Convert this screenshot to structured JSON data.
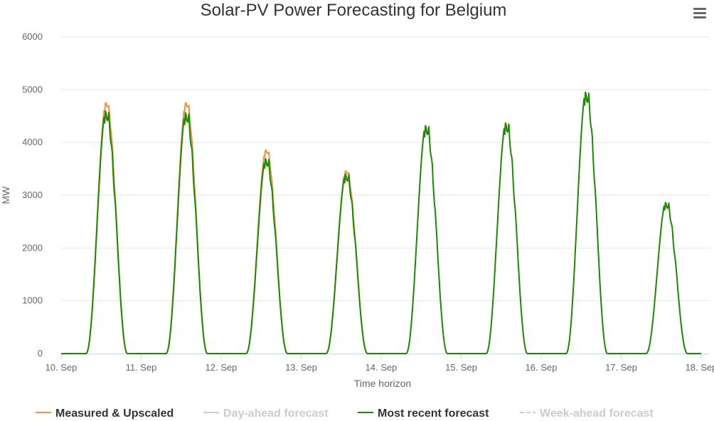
{
  "chart_data": {
    "type": "line",
    "title": "Solar-PV Power Forecasting for Belgium",
    "xlabel": "Time horizon",
    "ylabel": "MW",
    "ylim": [
      0,
      6000
    ],
    "yticks": [
      "0",
      "1000",
      "2000",
      "3000",
      "4000",
      "5000",
      "6000"
    ],
    "xlim": [
      "10. Sep",
      "18. Sep"
    ],
    "xticks": [
      "10. Sep",
      "11. Sep",
      "12. Sep",
      "13. Sep",
      "14. Sep",
      "15. Sep",
      "16. Sep",
      "17. Sep",
      "18. Sep"
    ],
    "grid": "horizontal",
    "legend_position": "bottom",
    "series": [
      {
        "name": "Measured & Upscaled",
        "color": "#f28f43",
        "visible": true,
        "days": [
          {
            "date": "10. Sep",
            "peak": 4830
          },
          {
            "date": "11. Sep",
            "peak": 4830
          },
          {
            "date": "12. Sep",
            "peak": 3920
          },
          {
            "date": "13. Sep",
            "peak": 3520
          }
        ]
      },
      {
        "name": "Day-ahead forecast",
        "color": "#cccccc",
        "visible": false,
        "days": []
      },
      {
        "name": "Most recent forecast",
        "color": "#1a8a00",
        "visible": true,
        "days": [
          {
            "date": "10. Sep",
            "peak": 4700
          },
          {
            "date": "11. Sep",
            "peak": 4670
          },
          {
            "date": "12. Sep",
            "peak": 3780
          },
          {
            "date": "13. Sep",
            "peak": 3480
          },
          {
            "date": "14. Sep",
            "peak": 4420
          },
          {
            "date": "15. Sep",
            "peak": 4470
          },
          {
            "date": "16. Sep",
            "peak": 5070
          },
          {
            "date": "17. Sep",
            "peak": 2930
          }
        ]
      },
      {
        "name": "Week-ahead forecast",
        "color": "#cccccc",
        "visible": false,
        "dashed": true,
        "days": []
      }
    ]
  },
  "menu": {
    "icon": "hamburger-menu-icon"
  }
}
